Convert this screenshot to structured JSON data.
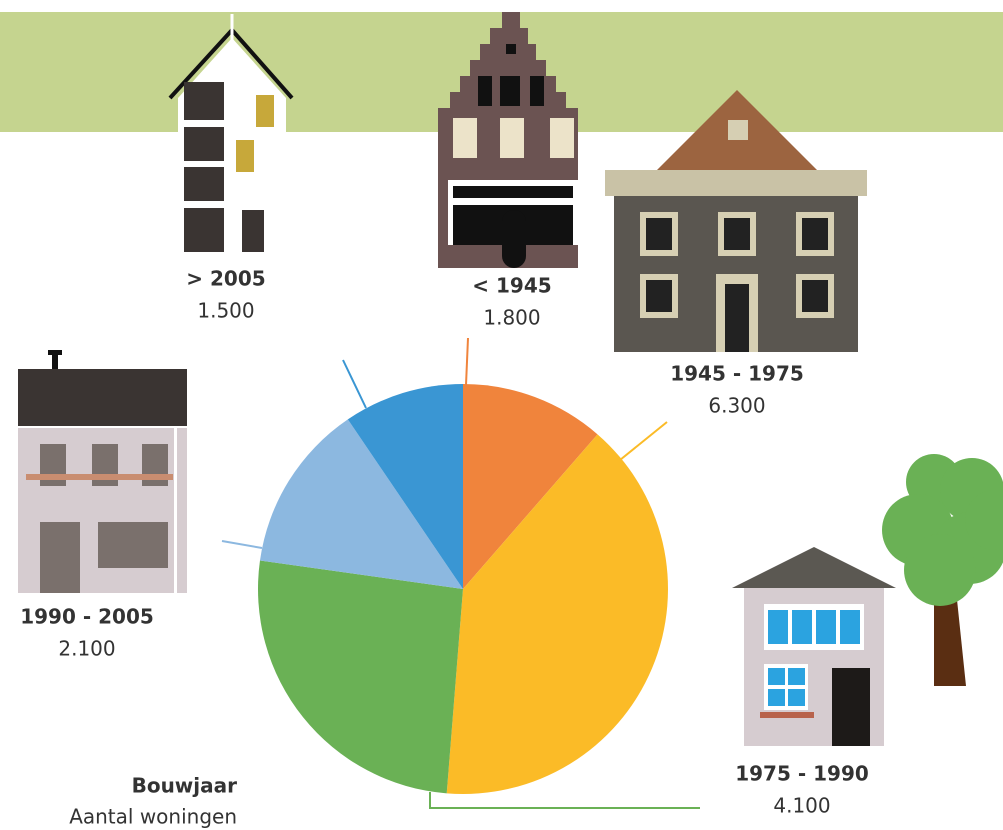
{
  "chart_data": {
    "type": "pie",
    "categories": [
      "< 1945",
      "1945 - 1975",
      "1975 - 1990",
      "1990 - 2005",
      "> 2005"
    ],
    "values": [
      1800,
      6300,
      4100,
      2100,
      1500
    ],
    "value_labels": [
      "1.800",
      "6.300",
      "4.100",
      "2.100",
      "1.500"
    ],
    "colors": [
      "#f0843c",
      "#fbbb27",
      "#6ab155",
      "#8cb8e0",
      "#3a96d3"
    ],
    "legend_title": "Bouwjaar",
    "legend_subtitle": "Aantal woningen"
  }
}
